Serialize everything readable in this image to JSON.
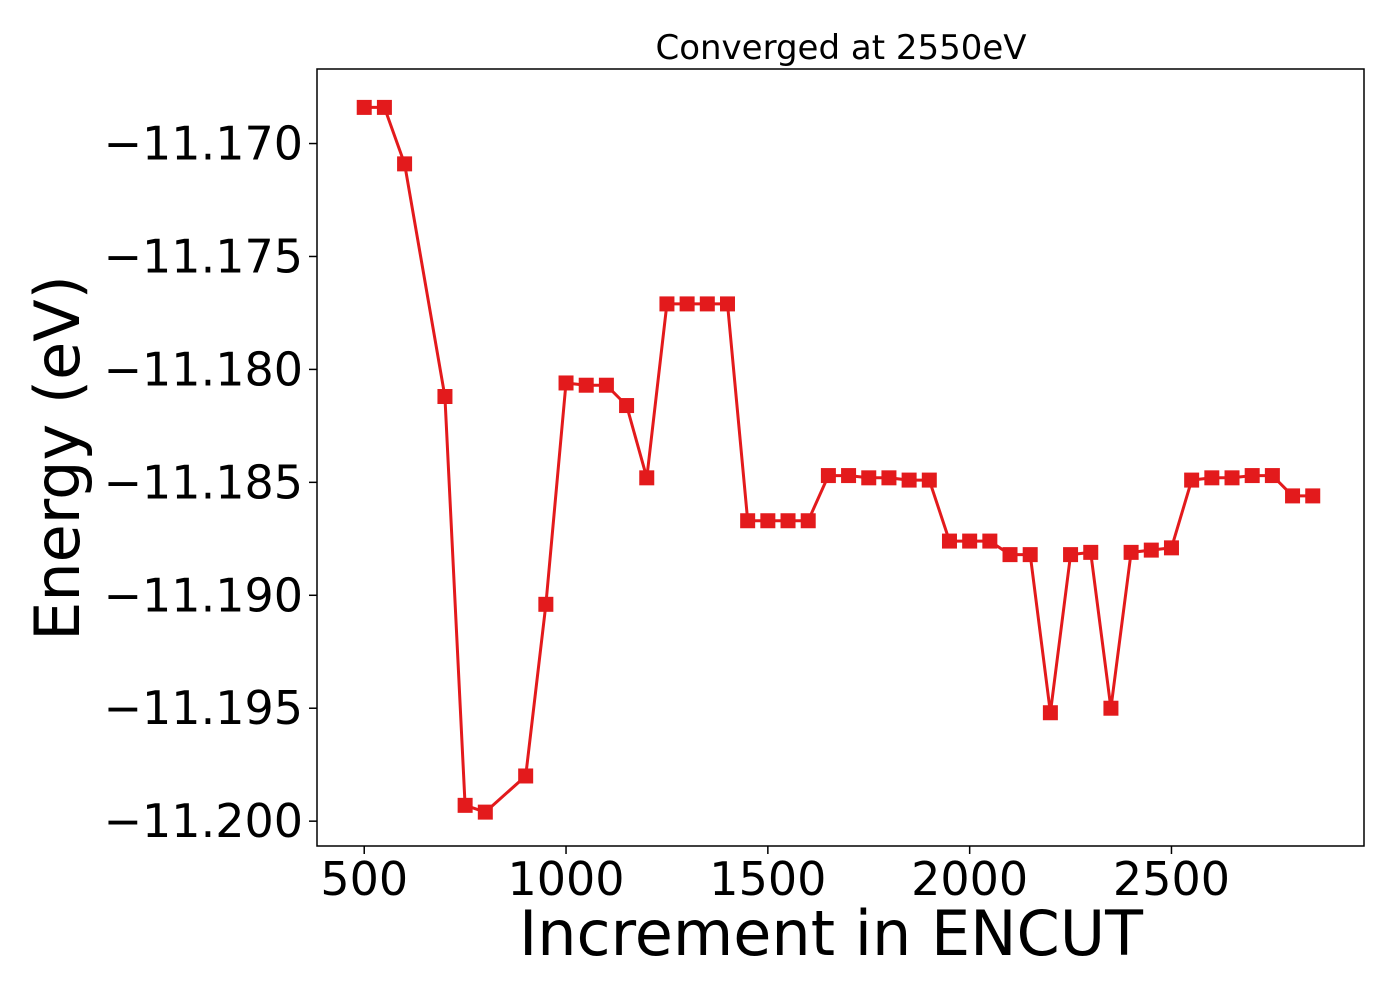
{
  "chart_data": {
    "type": "line",
    "title": "Converged at 2550eV",
    "xlabel": "Increment in ENCUT",
    "ylabel": "Energy (eV)",
    "xlim": [
      383,
      2977
    ],
    "ylim": [
      -11.2011,
      -11.1667
    ],
    "x_ticks": [
      500,
      1000,
      1500,
      2000,
      2500
    ],
    "x_tick_labels": [
      "500",
      "1000",
      "1500",
      "2000",
      "2500"
    ],
    "y_ticks": [
      -11.17,
      -11.175,
      -11.18,
      -11.185,
      -11.19,
      -11.195,
      -11.2
    ],
    "y_tick_labels": [
      "−11.170",
      "−11.175",
      "−11.180",
      "−11.185",
      "−11.190",
      "−11.195",
      "−11.200"
    ],
    "grid": false,
    "legend": "none",
    "series": [
      {
        "color": "#e31a1c",
        "marker": "square",
        "x": [
          500,
          550,
          600,
          700,
          750,
          800,
          900,
          950,
          1000,
          1050,
          1100,
          1150,
          1200,
          1250,
          1300,
          1350,
          1400,
          1450,
          1500,
          1550,
          1600,
          1650,
          1700,
          1750,
          1800,
          1850,
          1900,
          1950,
          2000,
          2050,
          2100,
          2150,
          2200,
          2250,
          2300,
          2350,
          2400,
          2450,
          2500,
          2550,
          2600,
          2650,
          2700,
          2750,
          2800,
          2850
        ],
        "values": [
          -11.1684,
          -11.1684,
          -11.1709,
          -11.1812,
          -11.1993,
          -11.1996,
          -11.198,
          -11.1904,
          -11.1806,
          -11.1807,
          -11.1807,
          -11.1816,
          -11.1848,
          -11.1771,
          -11.1771,
          -11.1771,
          -11.1771,
          -11.1867,
          -11.1867,
          -11.1867,
          -11.1867,
          -11.1847,
          -11.1847,
          -11.1848,
          -11.1848,
          -11.1849,
          -11.1849,
          -11.1876,
          -11.1876,
          -11.1876,
          -11.1882,
          -11.1882,
          -11.1952,
          -11.1882,
          -11.1881,
          -11.195,
          -11.1881,
          -11.188,
          -11.1879,
          -11.1849,
          -11.1848,
          -11.1848,
          -11.1847,
          -11.1847,
          -11.1856,
          -11.1856
        ]
      }
    ]
  }
}
